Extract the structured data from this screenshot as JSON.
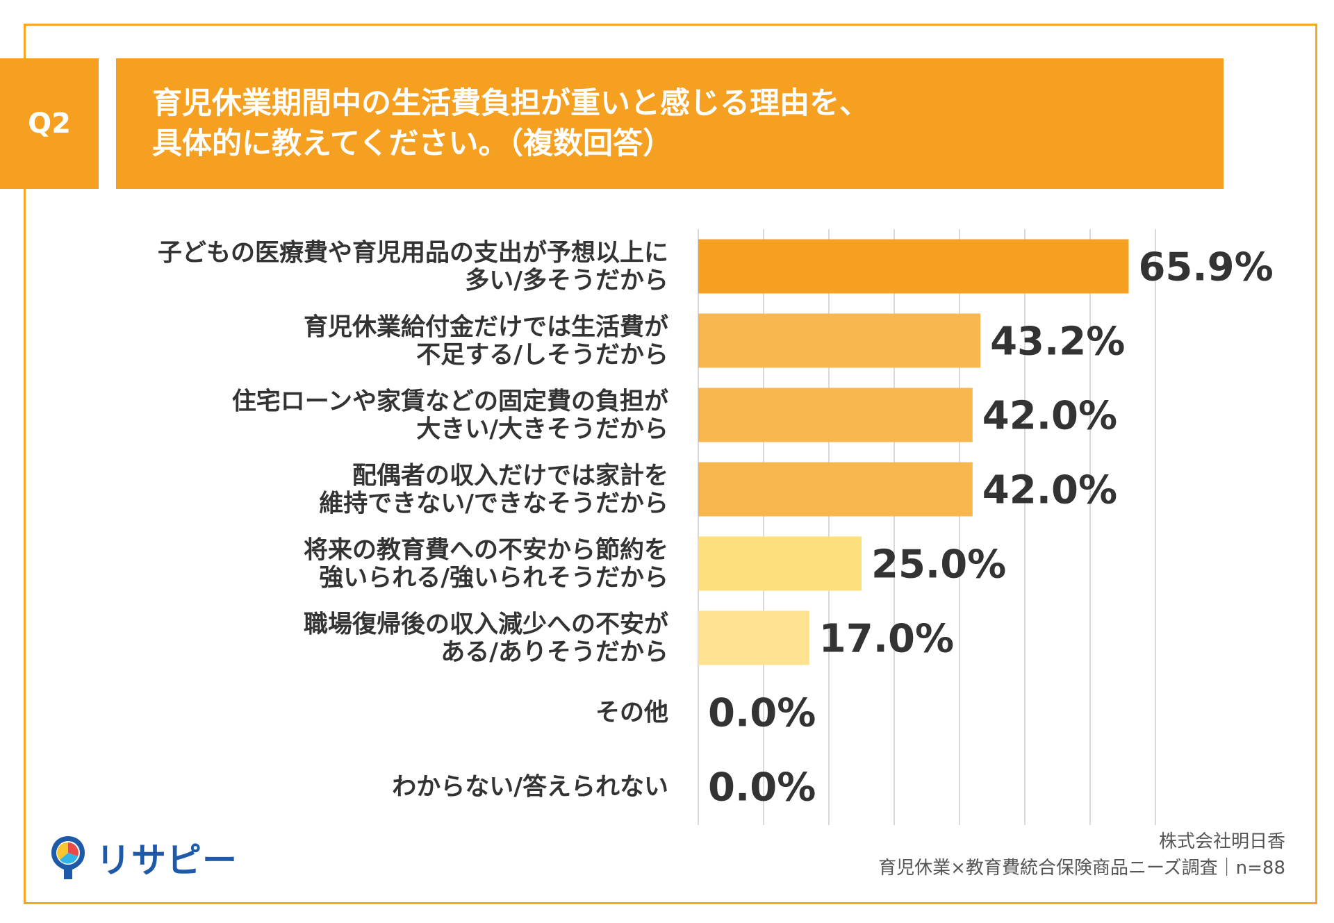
{
  "question": {
    "badge": "Q2",
    "title_line1": "育児休業期間中の生活費負担が重いと感じる理由を、",
    "title_line2": "具体的に教えてください。（複数回答）"
  },
  "colors": {
    "accent": "#F5A020",
    "bar_high": "#F5A020",
    "bar_mid": "#F8B74E",
    "bar_low": "#FDDF7E",
    "bar_lowest": "#FDE38F",
    "grid": "#D9D9D9",
    "text": "#333333"
  },
  "chart_data": {
    "type": "bar",
    "orientation": "horizontal",
    "categories": [
      [
        "子どもの医療費や育児用品の支出が予想以上に",
        "多い/多そうだから"
      ],
      [
        "育児休業給付金だけでは生活費が",
        "不足する/しそうだから"
      ],
      [
        "住宅ローンや家賃などの固定費の負担が",
        "大きい/大きそうだから"
      ],
      [
        "配偶者の収入だけでは家計を",
        "維持できない/できなそうだから"
      ],
      [
        "将来の教育費への不安から節約を",
        "強いられる/強いられそうだから"
      ],
      [
        "職場復帰後の収入減少への不安が",
        "ある/ありそうだから"
      ],
      [
        "その他"
      ],
      [
        "わからない/答えられない"
      ]
    ],
    "values": [
      65.9,
      43.2,
      42.0,
      42.0,
      25.0,
      17.0,
      0.0,
      0.0
    ],
    "value_labels": [
      "65.9%",
      "43.2%",
      "42.0%",
      "42.0%",
      "25.0%",
      "17.0%",
      "0.0%",
      "0.0%"
    ],
    "xlim": [
      0,
      70
    ],
    "grid": true,
    "unit": "%"
  },
  "logo": {
    "icon": "pin-logo-icon",
    "text": "リサピー"
  },
  "source": {
    "line1": "株式会社明日香",
    "line2": "育児休業×教育費統合保険商品ニーズ調査｜n=88"
  }
}
